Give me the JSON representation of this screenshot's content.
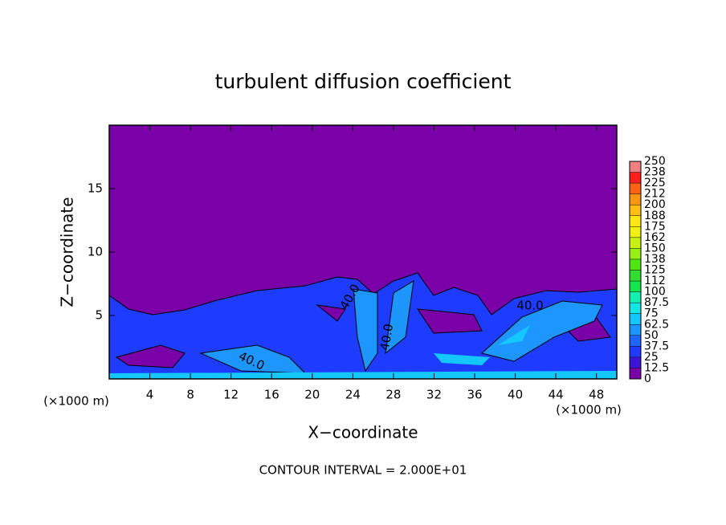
{
  "chart_data": {
    "type": "contour",
    "title": "turbulent diffusion coefficient",
    "xlabel": "X−coordinate",
    "ylabel": "Z−coordinate",
    "x_unit_labels": [
      "(×1000 m)",
      "(×1000 m)"
    ],
    "footnote": "CONTOUR INTERVAL = 2.000E+01",
    "xlim": [
      0,
      50
    ],
    "xticks": [
      4,
      8,
      12,
      16,
      20,
      24,
      28,
      32,
      36,
      40,
      44,
      48
    ],
    "ylim": [
      0,
      20
    ],
    "yticks": [
      5,
      10,
      15
    ],
    "contour_labels": [
      "40.0",
      "40.0",
      "40.0",
      "40.0"
    ],
    "colorbar": {
      "ticks": [
        0,
        12.5,
        25,
        37.5,
        50,
        62.5,
        75,
        87.5,
        100,
        {
          "value": 112.5,
          "label": "112"
        },
        125,
        {
          "value": 137.5,
          "label": "138"
        },
        150,
        {
          "value": 162.5,
          "label": "162"
        },
        175,
        {
          "value": 187.5,
          "label": "188"
        },
        200,
        {
          "value": 212.5,
          "label": "212"
        },
        225,
        {
          "value": 237.5,
          "label": "238"
        },
        250
      ],
      "colors": [
        "#7a00a8",
        "#3c14d8",
        "#1e3cff",
        "#1e64ff",
        "#1e96ff",
        "#14c8ff",
        "#14e6e6",
        "#14f0b4",
        "#14e650",
        "#32dc32",
        "#50e614",
        "#96f014",
        "#c8f014",
        "#f0f014",
        "#ffe614",
        "#ffbe14",
        "#ff9614",
        "#ff6414",
        "#ff1e1e",
        "#f08080"
      ]
    }
  }
}
